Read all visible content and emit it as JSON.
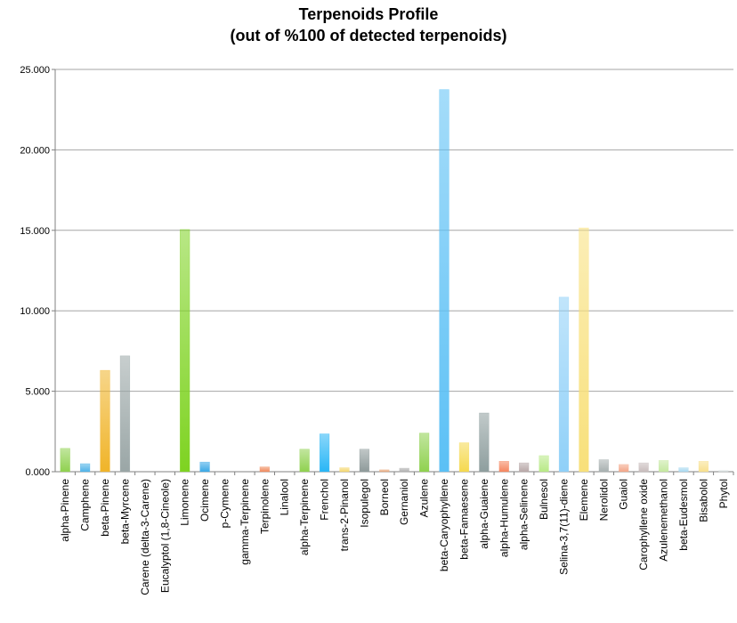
{
  "chart_data": {
    "type": "bar",
    "title": "Terpenoids Profile",
    "subtitle": "(out of %100 of detected terpenoids)",
    "xlabel": "",
    "ylabel": "",
    "ylim": [
      0,
      25
    ],
    "yticks": [
      "0.000",
      "5.000",
      "10.000",
      "15.000",
      "20.000",
      "25.000"
    ],
    "grid": true,
    "legend": "none",
    "categories": [
      "alpha-Pinene",
      "Camphene",
      "beta-Pinene",
      "beta-Myrcene",
      "Carene (delta-3-Carene)",
      "Eucalyptol (1,8-Cineole)",
      "Limonene",
      "Ocimene",
      "p-Cymene",
      "gamma-Terpinene",
      "Terpinolene",
      "Linalool",
      "alpha-Terpinene",
      "Frenchol",
      "trans-2-Pinanol",
      "Isopulegol",
      "Borneol",
      "Gernaniol",
      "Azulene",
      "beta-Caryophyllene",
      "beta-Famaesene",
      "alpha-Guaiene",
      "alpha-Humulene",
      "alpha-Selinene",
      "Bulnesol",
      "Selina-3,7(11)-diene",
      "Elemene",
      "Nerolidol",
      "Guaiol",
      "Carophyllene oxide",
      "Azulenemethanol",
      "beta-Eudesmol",
      "Bisabolol",
      "Phytol"
    ],
    "values": [
      1.45,
      0.5,
      6.3,
      7.2,
      0,
      0,
      15.05,
      0.6,
      0,
      0,
      0.3,
      0,
      1.4,
      2.35,
      0.25,
      1.4,
      0.12,
      0.22,
      2.4,
      23.75,
      1.8,
      3.65,
      0.65,
      0.55,
      1.0,
      10.85,
      15.15,
      0.75,
      0.45,
      0.55,
      0.7,
      0.25,
      0.65,
      0.07
    ],
    "colors": [
      "#8fd14f",
      "#4fb3e8",
      "#f0b429",
      "#9aa6a6",
      "#cccccc",
      "#cccccc",
      "#7ed321",
      "#3aa8e6",
      "#cccccc",
      "#cccccc",
      "#f08a5d",
      "#cccccc",
      "#8fd14f",
      "#29b6f6",
      "#f5d76e",
      "#8e9a9a",
      "#e8a87c",
      "#b0b0b0",
      "#8fd14f",
      "#5bc0f5",
      "#f5d94e",
      "#8e9e9e",
      "#f5855e",
      "#b8a8a8",
      "#b8e986",
      "#8fd0f8",
      "#f8e07a",
      "#a8b0b0",
      "#f3a688",
      "#c8bcbc",
      "#c5e8a0",
      "#a8d8f0",
      "#f8e08e",
      "#d0d8d8"
    ]
  }
}
